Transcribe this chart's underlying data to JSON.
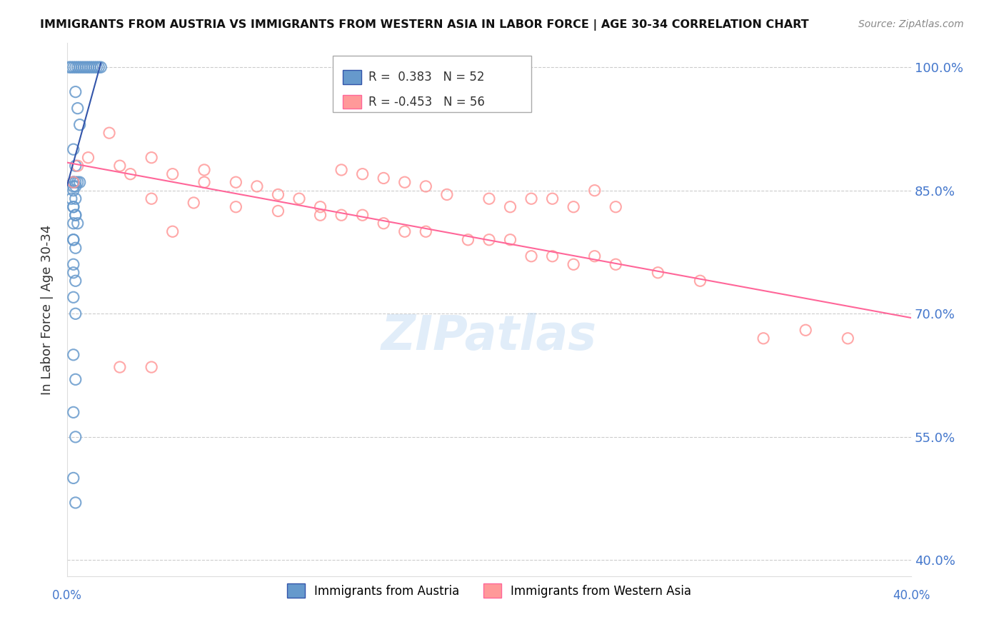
{
  "title": "IMMIGRANTS FROM AUSTRIA VS IMMIGRANTS FROM WESTERN ASIA IN LABOR FORCE | AGE 30-34 CORRELATION CHART",
  "source": "Source: ZipAtlas.com",
  "ylabel": "In Labor Force | Age 30-34",
  "y_ticks": [
    0.4,
    0.55,
    0.7,
    0.85,
    1.0
  ],
  "y_tick_labels": [
    "40.0%",
    "55.0%",
    "70.0%",
    "85.0%",
    "100.0%"
  ],
  "x_ticks": [
    0.0,
    0.05,
    0.1,
    0.15,
    0.2,
    0.25,
    0.3,
    0.35,
    0.4
  ],
  "xlim": [
    0.0,
    0.4
  ],
  "ylim": [
    0.38,
    1.03
  ],
  "austria_R": 0.383,
  "austria_N": 52,
  "western_asia_R": -0.453,
  "western_asia_N": 56,
  "austria_color": "#6699CC",
  "western_asia_color": "#FF9999",
  "austria_line_color": "#3355AA",
  "western_asia_line_color": "#FF6699",
  "background_color": "#FFFFFF",
  "grid_color": "#CCCCCC"
}
